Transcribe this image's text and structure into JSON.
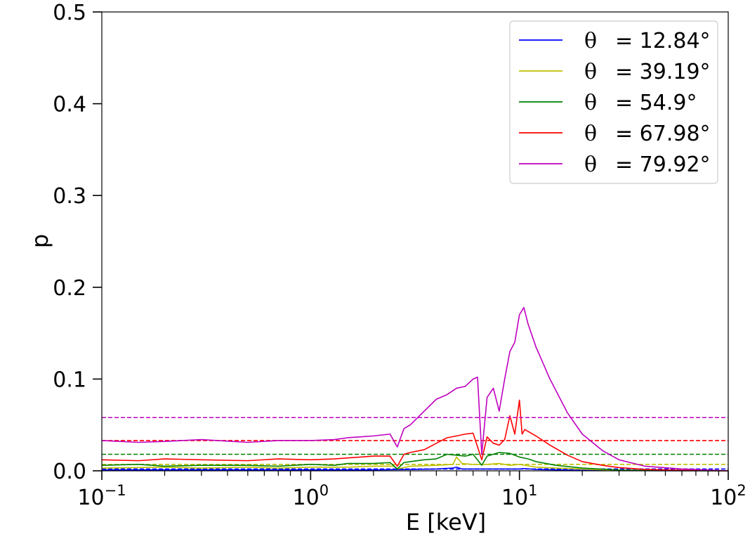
{
  "chart_data": {
    "type": "line",
    "xlabel": "E [keV]",
    "ylabel": "p",
    "xscale": "log",
    "xlim": [
      0.1,
      100
    ],
    "ylim": [
      0,
      0.5
    ],
    "x_ticks": [
      {
        "value": 0.1,
        "base": "10",
        "exp": "−1"
      },
      {
        "value": 1,
        "base": "10",
        "exp": "0"
      },
      {
        "value": 10,
        "base": "10",
        "exp": "1"
      },
      {
        "value": 100,
        "base": "10",
        "exp": "2"
      }
    ],
    "y_ticks": [
      {
        "value": 0.0,
        "label": "0.0"
      },
      {
        "value": 0.1,
        "label": "0.1"
      },
      {
        "value": 0.2,
        "label": "0.2"
      },
      {
        "value": 0.3,
        "label": "0.3"
      },
      {
        "value": 0.4,
        "label": "0.4"
      },
      {
        "value": 0.5,
        "label": "0.5"
      }
    ],
    "grid": false,
    "legend": {
      "position": "top-right",
      "entries": [
        {
          "symbol": "θ",
          "text": "= 12.84°",
          "color": "#0000ff"
        },
        {
          "symbol": "θ",
          "text": "= 39.19°",
          "color": "#bfbf00"
        },
        {
          "symbol": "θ",
          "text": "= 54.9°",
          "color": "#008000"
        },
        {
          "symbol": "θ",
          "text": "= 67.98°",
          "color": "#ff0000"
        },
        {
          "symbol": "θ",
          "text": "= 79.92°",
          "color": "#bf00bf"
        }
      ]
    },
    "series": [
      {
        "color": "#0000ff",
        "reference_level": 0.002,
        "points": [
          [
            0.1,
            0.001
          ],
          [
            0.2,
            0.001
          ],
          [
            0.5,
            0.001
          ],
          [
            1,
            0.001
          ],
          [
            2,
            0.001
          ],
          [
            3,
            0.0015
          ],
          [
            4,
            0.002
          ],
          [
            4.8,
            0.003
          ],
          [
            5,
            0.004
          ],
          [
            5.3,
            0.002
          ],
          [
            6,
            0.002
          ],
          [
            7,
            0.002
          ],
          [
            8,
            0.002
          ],
          [
            9,
            0.002
          ],
          [
            10,
            0.002
          ],
          [
            10.5,
            0.0025
          ],
          [
            12,
            0.0015
          ],
          [
            15,
            0.001
          ],
          [
            20,
            0.0005
          ],
          [
            30,
            0.0002
          ],
          [
            50,
            0.0001
          ],
          [
            100,
            0
          ]
        ]
      },
      {
        "color": "#bfbf00",
        "reference_level": 0.007,
        "points": [
          [
            0.1,
            0.003
          ],
          [
            0.2,
            0.004
          ],
          [
            0.3,
            0.003
          ],
          [
            0.5,
            0.004
          ],
          [
            0.7,
            0.003
          ],
          [
            1,
            0.004
          ],
          [
            1.5,
            0.004
          ],
          [
            2,
            0.005
          ],
          [
            2.5,
            0.005
          ],
          [
            2.6,
            0.002
          ],
          [
            3,
            0.005
          ],
          [
            4,
            0.006
          ],
          [
            4.8,
            0.007
          ],
          [
            5,
            0.015
          ],
          [
            5.3,
            0.008
          ],
          [
            6,
            0.007
          ],
          [
            7,
            0.007
          ],
          [
            8,
            0.008
          ],
          [
            9,
            0.006
          ],
          [
            10,
            0.007
          ],
          [
            12,
            0.004
          ],
          [
            15,
            0.003
          ],
          [
            20,
            0.002
          ],
          [
            30,
            0.0005
          ],
          [
            50,
            0.0002
          ],
          [
            100,
            0
          ]
        ]
      },
      {
        "color": "#008000",
        "reference_level": 0.018,
        "points": [
          [
            0.1,
            0.006
          ],
          [
            0.15,
            0.007
          ],
          [
            0.2,
            0.005
          ],
          [
            0.3,
            0.006
          ],
          [
            0.5,
            0.006
          ],
          [
            0.7,
            0.005
          ],
          [
            1,
            0.007
          ],
          [
            1.3,
            0.006
          ],
          [
            1.5,
            0.008
          ],
          [
            2,
            0.008
          ],
          [
            2.4,
            0.009
          ],
          [
            2.6,
            0.002
          ],
          [
            2.8,
            0.009
          ],
          [
            3,
            0.01
          ],
          [
            3.5,
            0.012
          ],
          [
            4,
            0.013
          ],
          [
            4.5,
            0.018
          ],
          [
            5,
            0.017
          ],
          [
            5.5,
            0.016
          ],
          [
            6,
            0.018
          ],
          [
            6.6,
            0.006
          ],
          [
            7,
            0.016
          ],
          [
            8,
            0.02
          ],
          [
            9,
            0.019
          ],
          [
            10,
            0.015
          ],
          [
            11,
            0.013
          ],
          [
            12,
            0.01
          ],
          [
            15,
            0.006
          ],
          [
            20,
            0.003
          ],
          [
            30,
            0.0008
          ],
          [
            50,
            0.0002
          ],
          [
            100,
            0
          ]
        ]
      },
      {
        "color": "#ff0000",
        "reference_level": 0.033,
        "points": [
          [
            0.1,
            0.012
          ],
          [
            0.15,
            0.011
          ],
          [
            0.2,
            0.013
          ],
          [
            0.3,
            0.012
          ],
          [
            0.5,
            0.011
          ],
          [
            0.7,
            0.013
          ],
          [
            1,
            0.012
          ],
          [
            1.3,
            0.013
          ],
          [
            1.5,
            0.014
          ],
          [
            2,
            0.016
          ],
          [
            2.4,
            0.016
          ],
          [
            2.6,
            0.005
          ],
          [
            2.8,
            0.018
          ],
          [
            3,
            0.02
          ],
          [
            3.5,
            0.023
          ],
          [
            4,
            0.03
          ],
          [
            4.5,
            0.036
          ],
          [
            5,
            0.038
          ],
          [
            5.5,
            0.04
          ],
          [
            6,
            0.041
          ],
          [
            6.6,
            0.012
          ],
          [
            7,
            0.037
          ],
          [
            7.5,
            0.03
          ],
          [
            8,
            0.028
          ],
          [
            8.5,
            0.034
          ],
          [
            9,
            0.06
          ],
          [
            9.5,
            0.04
          ],
          [
            10,
            0.077
          ],
          [
            10.3,
            0.04
          ],
          [
            10.6,
            0.045
          ],
          [
            12,
            0.038
          ],
          [
            14,
            0.028
          ],
          [
            17,
            0.017
          ],
          [
            20,
            0.01
          ],
          [
            25,
            0.006
          ],
          [
            30,
            0.0035
          ],
          [
            40,
            0.0015
          ],
          [
            60,
            0.0005
          ],
          [
            100,
            0
          ]
        ]
      },
      {
        "color": "#bf00bf",
        "reference_level": 0.058,
        "points": [
          [
            0.1,
            0.033
          ],
          [
            0.15,
            0.031
          ],
          [
            0.2,
            0.032
          ],
          [
            0.3,
            0.034
          ],
          [
            0.5,
            0.031
          ],
          [
            0.7,
            0.033
          ],
          [
            1,
            0.033
          ],
          [
            1.3,
            0.034
          ],
          [
            1.5,
            0.036
          ],
          [
            2,
            0.038
          ],
          [
            2.4,
            0.04
          ],
          [
            2.6,
            0.026
          ],
          [
            2.8,
            0.046
          ],
          [
            3,
            0.05
          ],
          [
            3.5,
            0.065
          ],
          [
            4,
            0.078
          ],
          [
            4.5,
            0.083
          ],
          [
            5,
            0.09
          ],
          [
            5.5,
            0.092
          ],
          [
            6,
            0.1
          ],
          [
            6.3,
            0.102
          ],
          [
            6.6,
            0.018
          ],
          [
            7,
            0.08
          ],
          [
            7.5,
            0.09
          ],
          [
            8,
            0.065
          ],
          [
            8.5,
            0.1
          ],
          [
            9,
            0.13
          ],
          [
            9.5,
            0.14
          ],
          [
            10,
            0.17
          ],
          [
            10.5,
            0.178
          ],
          [
            11,
            0.16
          ],
          [
            12,
            0.135
          ],
          [
            14,
            0.1
          ],
          [
            17,
            0.063
          ],
          [
            20,
            0.04
          ],
          [
            25,
            0.022
          ],
          [
            30,
            0.012
          ],
          [
            40,
            0.005
          ],
          [
            60,
            0.002
          ],
          [
            100,
            0
          ]
        ]
      }
    ]
  }
}
